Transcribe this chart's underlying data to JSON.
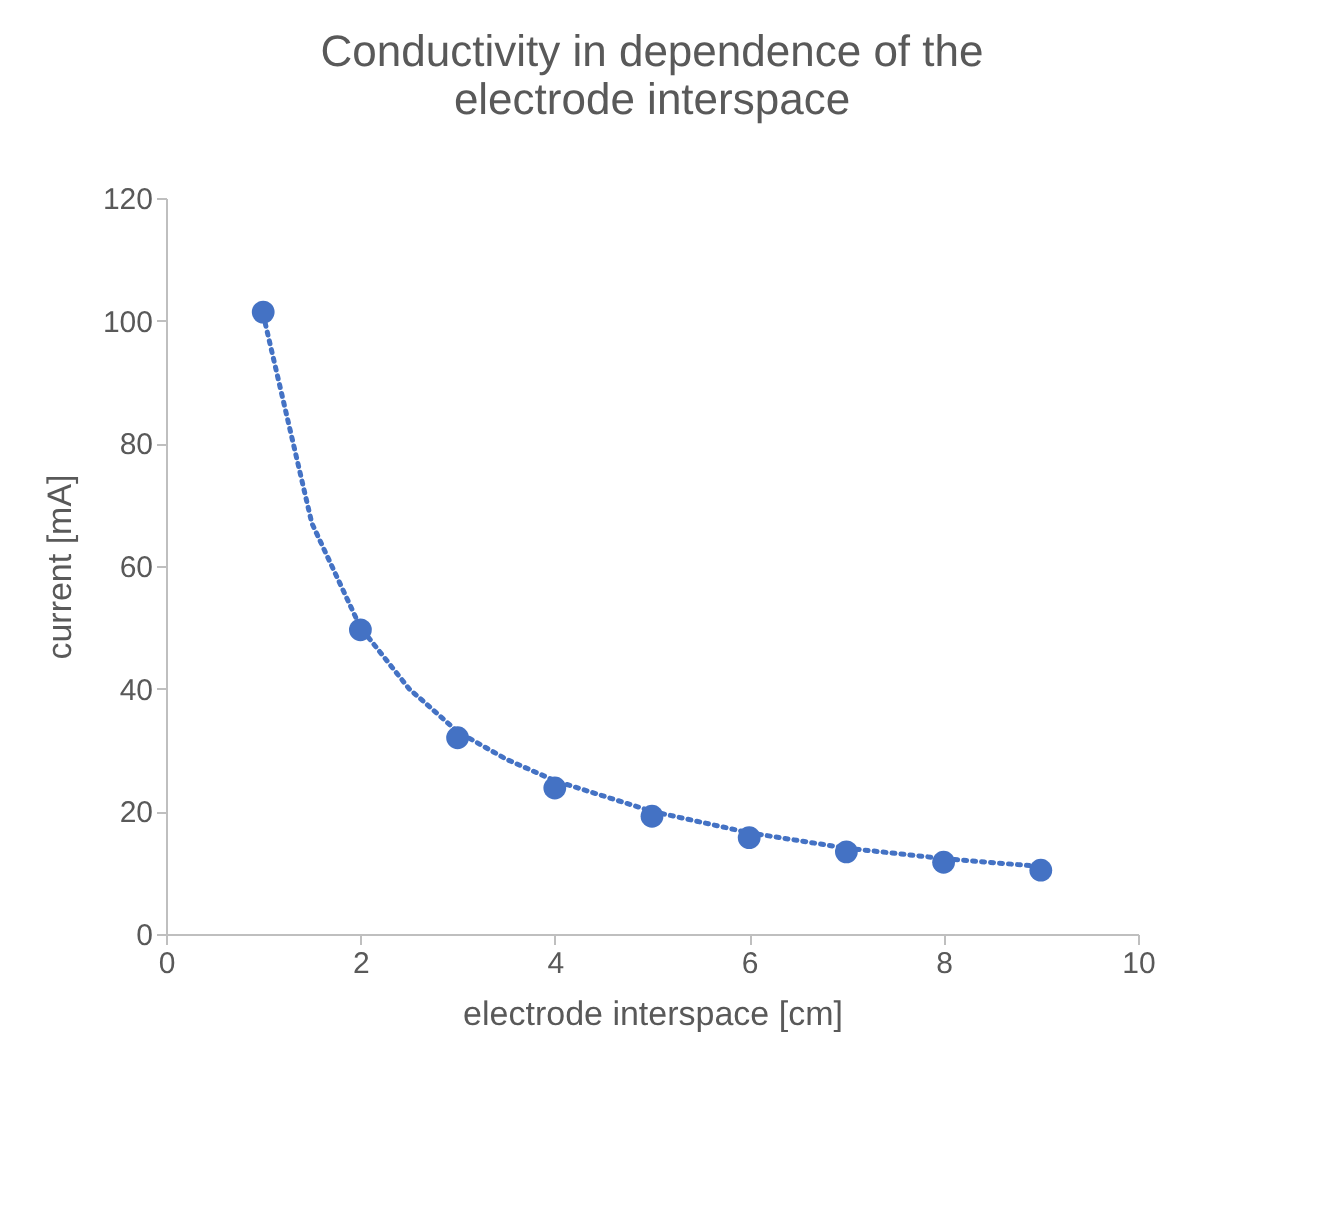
{
  "chart_data": {
    "type": "scatter",
    "title": "Conductivity in dependence of the electrode interspace",
    "xlabel": "electrode interspace [cm]",
    "ylabel": "current [mA]",
    "xlim": [
      0,
      10
    ],
    "xticks": [
      0,
      2,
      4,
      6,
      8,
      10
    ],
    "ylim": [
      0,
      120
    ],
    "yticks": [
      0,
      20,
      40,
      60,
      80,
      100,
      120
    ],
    "grid": false,
    "legend": false,
    "series": [
      {
        "type": "scatter",
        "marker": "circle",
        "color": "#4472c4",
        "x": [
          1,
          2,
          3,
          4,
          5,
          6,
          7,
          8,
          9
        ],
        "values": [
          101.4,
          49.6,
          32,
          23.8,
          19.2,
          15.7,
          13.4,
          11.7,
          10.4
        ]
      },
      {
        "type": "line",
        "marker": "none",
        "line_style": "dotted",
        "color": "#4472c4",
        "x": [
          1,
          1.5,
          2,
          2.5,
          3,
          3.5,
          4,
          5,
          6,
          7,
          8,
          9
        ],
        "values": [
          101,
          67,
          50,
          40,
          33,
          28.5,
          25,
          20,
          16.5,
          14,
          12.3,
          11
        ]
      }
    ]
  }
}
